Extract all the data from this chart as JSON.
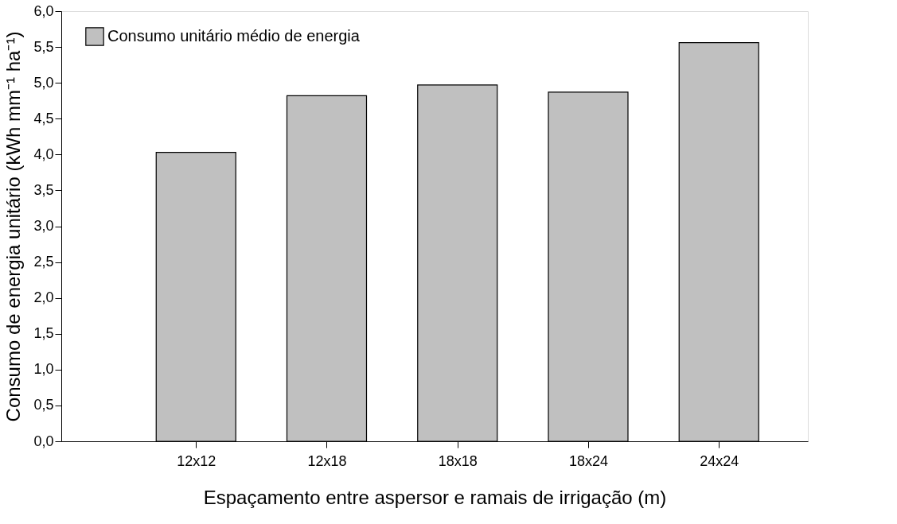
{
  "chart_data": {
    "type": "bar",
    "xlabel": "Espaçamento entre aspersor e ramais de irrigação (m)",
    "ylabel": "Consumo de energia unitário (kWh mm⁻¹ ha⁻¹)",
    "categories": [
      "12x12",
      "12x18",
      "18x18",
      "18x24",
      "24x24"
    ],
    "series": [
      {
        "name": "Consumo unitário médio de energia",
        "color": "#c0c0c0",
        "values": [
          4.03,
          4.82,
          4.97,
          4.87,
          5.56
        ]
      }
    ],
    "ylim": [
      0,
      6
    ],
    "yticks": [
      {
        "value": 0,
        "label": "0,0"
      },
      {
        "value": 0.5,
        "label": "0,5"
      },
      {
        "value": 1,
        "label": "1,0"
      },
      {
        "value": 1.5,
        "label": "1,5"
      },
      {
        "value": 2,
        "label": "2,0"
      },
      {
        "value": 2.5,
        "label": "2,5"
      },
      {
        "value": 3,
        "label": "3,0"
      },
      {
        "value": 3.5,
        "label": "3,5"
      },
      {
        "value": 4,
        "label": "4,0"
      },
      {
        "value": 4.5,
        "label": "4,5"
      },
      {
        "value": 5,
        "label": "5,0"
      },
      {
        "value": 5.5,
        "label": "5,5"
      },
      {
        "value": 6,
        "label": "6,0"
      }
    ],
    "grid": false,
    "legend": "top left"
  }
}
